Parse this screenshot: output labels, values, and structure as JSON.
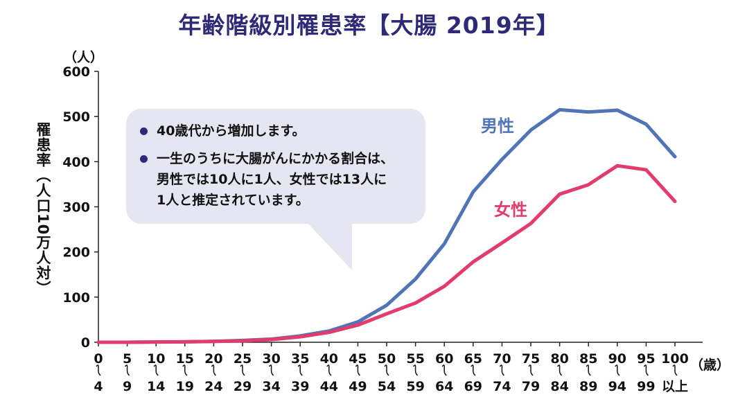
{
  "title": "年齢階級別罹患率【大腸 2019年】",
  "yunit": "（人）",
  "xunit": "（歳）",
  "ylabel_parts": [
    "罹患率",
    "（",
    "人口10万人対",
    "）"
  ],
  "callout": {
    "items": [
      {
        "lines": [
          "40歳代から増加します。"
        ]
      },
      {
        "lines": [
          "一生のうちに大腸がんにかかる割合は、",
          "男性では10人に1人、女性では13人に",
          "1人と推定されています。"
        ]
      }
    ]
  },
  "colors": {
    "male": "#4f74b8",
    "female": "#e23c6c",
    "callout_bg": "#e6e6f2",
    "title": "#2e2a78"
  },
  "chart_data": {
    "type": "line",
    "title": "年齢階級別罹患率【大腸 2019年】",
    "ylabel": "罹患率（人口10万人対）",
    "ylim": [
      0,
      600
    ],
    "yticks": [
      0,
      100,
      200,
      300,
      400,
      500,
      600
    ],
    "grid": false,
    "categories": [
      {
        "top": "0",
        "bottom": "4"
      },
      {
        "top": "5",
        "bottom": "9"
      },
      {
        "top": "10",
        "bottom": "14"
      },
      {
        "top": "15",
        "bottom": "19"
      },
      {
        "top": "20",
        "bottom": "24"
      },
      {
        "top": "25",
        "bottom": "29"
      },
      {
        "top": "30",
        "bottom": "34"
      },
      {
        "top": "35",
        "bottom": "39"
      },
      {
        "top": "40",
        "bottom": "44"
      },
      {
        "top": "45",
        "bottom": "49"
      },
      {
        "top": "50",
        "bottom": "54"
      },
      {
        "top": "55",
        "bottom": "59"
      },
      {
        "top": "60",
        "bottom": "64"
      },
      {
        "top": "65",
        "bottom": "69"
      },
      {
        "top": "70",
        "bottom": "74"
      },
      {
        "top": "75",
        "bottom": "79"
      },
      {
        "top": "80",
        "bottom": "84"
      },
      {
        "top": "85",
        "bottom": "89"
      },
      {
        "top": "90",
        "bottom": "94"
      },
      {
        "top": "95",
        "bottom": "99"
      },
      {
        "top": "100",
        "bottom": "以上"
      }
    ],
    "series": [
      {
        "name": "男性",
        "color": "#4f74b8",
        "values": [
          0,
          0,
          0.5,
          1,
          2,
          4,
          7,
          14,
          25,
          45,
          82,
          140,
          218,
          333,
          405,
          470,
          515,
          510,
          514,
          483,
          411
        ]
      },
      {
        "name": "女性",
        "color": "#e23c6c",
        "values": [
          0,
          0,
          0.5,
          1,
          2,
          3,
          6,
          12,
          22,
          38,
          63,
          87,
          124,
          178,
          220,
          263,
          328,
          349,
          391,
          382,
          312
        ]
      }
    ]
  }
}
